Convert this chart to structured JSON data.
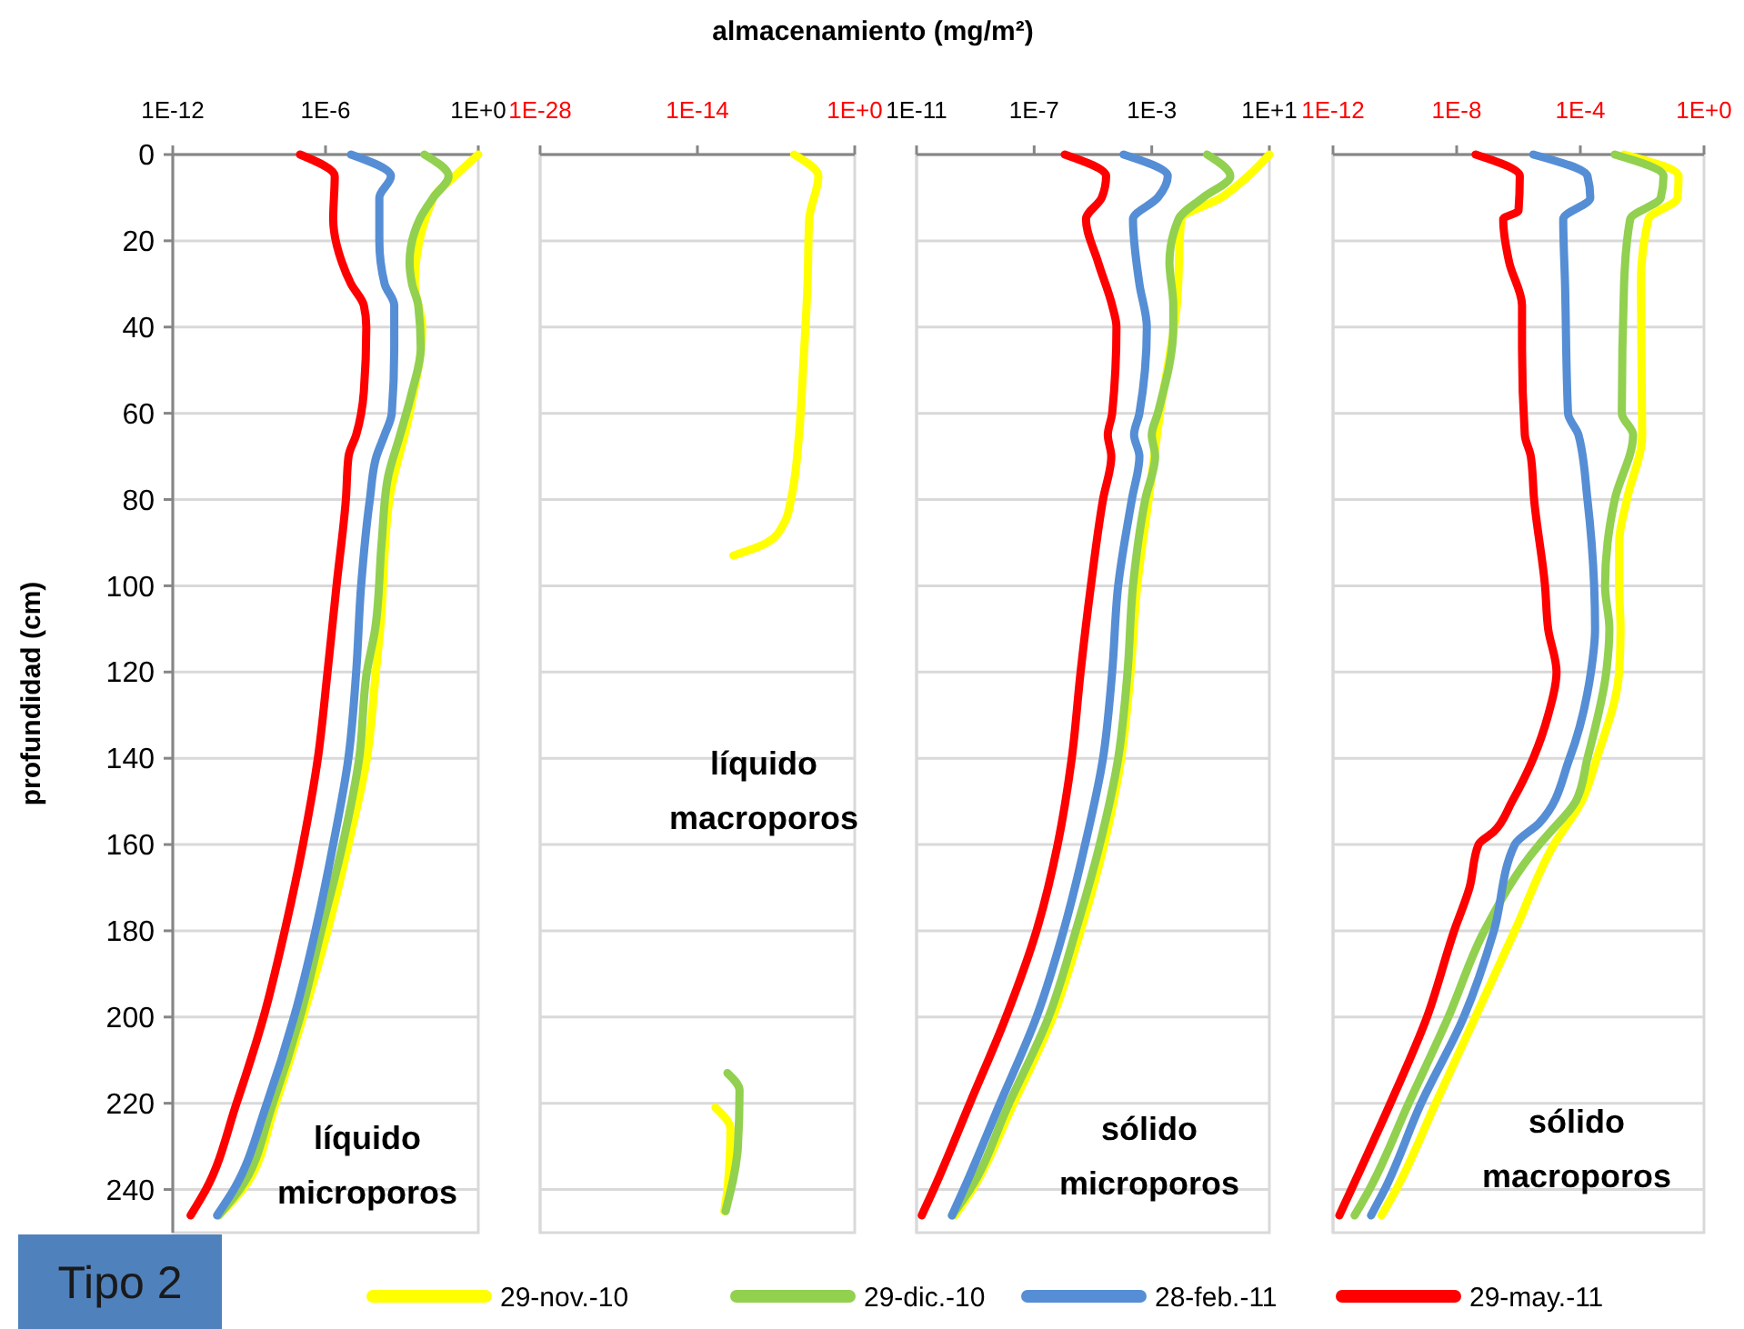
{
  "chart_data": [
    {
      "type": "line",
      "orientation": "horizontal",
      "ylabel": "profundidad (cm)",
      "log": "x",
      "grid": "y",
      "legend": "bottom",
      "xlim": [
        1e-12,
        1
      ],
      "xticks": [
        {
          "value": 1e-12,
          "label": "1E-12"
        },
        {
          "value": 1e-06,
          "label": "1E-6"
        },
        {
          "value": 1,
          "label": "1E+0"
        }
      ],
      "ylim": [
        250,
        0
      ],
      "yticks": [
        0,
        20,
        40,
        60,
        80,
        100,
        120,
        140,
        160,
        180,
        200,
        220,
        240
      ],
      "annotations": [
        "líquido microporos",
        "Tipo 2"
      ],
      "series": [
        {
          "name": "29-nov.-10",
          "color": "#ffff00",
          "x": [
            0,
            5,
            10,
            30,
            40,
            60,
            80,
            110,
            120,
            140,
            160,
            180,
            200,
            220,
            240,
            246
          ],
          "values": [
            1,
            0.12,
            0.017,
            0.0032,
            0.0063,
            0.002,
            0.00032,
            0.00014,
            9.5e-05,
            4.2e-05,
            7.9e-06,
            1.2e-06,
            1.3e-07,
            1.1e-08,
            5.5e-10,
            6.3e-11
          ]
        },
        {
          "name": "29-dic.-10",
          "color": "#92d050",
          "x": [
            0,
            5,
            10,
            15,
            25,
            30,
            35,
            45,
            55,
            65,
            75,
            90,
            110,
            120,
            140,
            160,
            180,
            200,
            220,
            240,
            246
          ],
          "values": [
            0.0076,
            0.068,
            0.017,
            0.005,
            0.002,
            0.0025,
            0.0044,
            0.0055,
            0.0025,
            0.00085,
            0.00028,
            0.00016,
            8.9e-05,
            4.2e-05,
            2.1e-05,
            4.7e-06,
            6.8e-07,
            1e-07,
            8.5e-09,
            4.2e-10,
            6.3e-11
          ]
        },
        {
          "name": "28-feb.-11",
          "color": "#558ed5",
          "x": [
            0,
            5,
            10,
            20,
            30,
            35,
            45,
            60,
            65,
            70,
            80,
            100,
            120,
            140,
            160,
            180,
            200,
            220,
            240,
            246
          ],
          "values": [
            1e-05,
            0.00037,
            0.00013,
            0.00013,
            0.00021,
            0.0005,
            0.0005,
            0.0004,
            0.00021,
            0.0001,
            5.5e-05,
            2.5e-05,
            1.6e-05,
            7.9e-06,
            2e-06,
            4e-07,
            5.8e-08,
            5e-09,
            2.5e-10,
            5.5e-11
          ]
        },
        {
          "name": "29-may.-11",
          "color": "#ff0000",
          "x": [
            0,
            5,
            15,
            25,
            30,
            35,
            40,
            55,
            65,
            70,
            80,
            100,
            120,
            140,
            160,
            180,
            200,
            220,
            240,
            246
          ],
          "values": [
            1e-07,
            2.3e-06,
            2e-06,
            4.4e-06,
            1e-05,
            3.2e-05,
            4e-05,
            3.2e-05,
            1.6e-05,
            8e-06,
            6.3e-06,
            2.7e-06,
            1.2e-06,
            5e-07,
            1.3e-07,
            2.5e-08,
            3.7e-09,
            3.2e-10,
            2e-11,
            5e-12
          ]
        }
      ]
    },
    {
      "type": "line",
      "orientation": "horizontal",
      "title": "almacenamiento (mg/m²)",
      "log": "x",
      "grid": "y",
      "tick_labels": "x",
      "xlim": [
        1e-28,
        1
      ],
      "xticks": [
        {
          "value": 1e-28,
          "label": "1E-28"
        },
        {
          "value": 1e-14,
          "label": "1E-14"
        },
        {
          "value": 1,
          "label": "1E+0"
        }
      ],
      "ylim": [
        250,
        0
      ],
      "yticks": [
        0,
        20,
        40,
        60,
        80,
        100,
        120,
        140,
        160,
        180,
        200,
        220,
        240
      ],
      "annotations": [
        "líquido macroporos"
      ],
      "series": [
        {
          "color": "#ffff00",
          "x": [
            0,
            5,
            15,
            30,
            50,
            65,
            80,
            85,
            90,
            93,
            150,
            221,
            226,
            240,
            245
          ],
          "values": [
            4e-06,
            0.00058,
            8.9e-05,
            6.3e-05,
            2.5e-05,
            1.1e-05,
            2.1e-06,
            6.3e-07,
            1.6e-08,
            1.6e-11,
            null,
            4e-13,
            8.7e-12,
            4.7e-12,
            2.5e-12
          ]
        },
        {
          "color": "#92d050",
          "x": [
            213,
            217,
            230,
            245
          ],
          "values": [
            4.7e-12,
            5.6e-11,
            4e-11,
            3.2e-12
          ]
        }
      ]
    },
    {
      "type": "line",
      "orientation": "horizontal",
      "log": "x",
      "grid": "y",
      "tick_labels": "x",
      "xlim": [
        1e-11,
        10
      ],
      "xticks": [
        {
          "value": 1e-11,
          "label": "1E-11"
        },
        {
          "value": 1e-07,
          "label": "1E-7"
        },
        {
          "value": 0.001,
          "label": "1E-3"
        },
        {
          "value": 10,
          "label": "1E+1"
        }
      ],
      "ylim": [
        250,
        0
      ],
      "yticks": [
        0,
        20,
        40,
        60,
        80,
        100,
        120,
        140,
        160,
        180,
        200,
        220,
        240
      ],
      "annotations": [
        "sólido microporos"
      ],
      "series": [
        {
          "color": "#ffff00",
          "x": [
            0,
            5,
            10,
            15,
            35,
            60,
            80,
            100,
            120,
            140,
            160,
            180,
            200,
            220,
            240,
            246
          ],
          "values": [
            10,
            1.9,
            0.23,
            0.01,
            0.0071,
            0.0019,
            0.00078,
            0.00032,
            0.00019,
            9.1e-05,
            2.4e-05,
            3.8e-06,
            4.3e-07,
            2e-08,
            7.9e-10,
            2e-10
          ]
        },
        {
          "color": "#92d050",
          "x": [
            0,
            5,
            10,
            15,
            25,
            35,
            40,
            60,
            65,
            70,
            80,
            100,
            120,
            140,
            160,
            180,
            200,
            220,
            240,
            246
          ],
          "values": [
            0.076,
            0.47,
            0.055,
            0.0081,
            0.004,
            0.0054,
            0.0054,
            0.0016,
            0.001,
            0.0013,
            0.0006,
            0.00023,
            0.00015,
            7.2e-05,
            1.7e-05,
            2.6e-06,
            3.1e-07,
            1.4e-08,
            6.5e-10,
            1.6e-10
          ]
        },
        {
          "color": "#558ed5",
          "x": [
            0,
            5,
            10,
            15,
            30,
            40,
            60,
            65,
            70,
            80,
            100,
            120,
            140,
            160,
            180,
            200,
            220,
            240,
            246
          ],
          "values": [
            0.00011,
            0.0035,
            0.0016,
            0.00023,
            0.00038,
            0.00068,
            0.00038,
            0.00025,
            0.00038,
            0.00021,
            7.2e-05,
            4.5e-05,
            2.2e-05,
            5.4e-06,
            1e-06,
            1.2e-07,
            6.9e-09,
            4e-10,
            1.6e-10
          ]
        },
        {
          "color": "#ff0000",
          "x": [
            0,
            5,
            10,
            15,
            25,
            35,
            40,
            60,
            65,
            70,
            80,
            100,
            120,
            140,
            160,
            180,
            200,
            220,
            240,
            246
          ],
          "values": [
            1.1e-06,
            2.8e-05,
            2e-05,
            5.8e-06,
            1.5e-05,
            4.5e-05,
            6.3e-05,
            4.5e-05,
            3.2e-05,
            4.2e-05,
            2.2e-05,
            8.5e-06,
            3.8e-06,
            1.9e-06,
            6.3e-07,
            1.2e-07,
            1.1e-08,
            6.5e-10,
            3.8e-11,
            1.5e-11
          ]
        }
      ]
    },
    {
      "type": "line",
      "orientation": "horizontal",
      "log": "x",
      "grid": "y",
      "tick_labels": "x",
      "xlim": [
        1e-12,
        1
      ],
      "xticks": [
        {
          "value": 1e-12,
          "label": "1E-12"
        },
        {
          "value": 1e-08,
          "label": "1E-8"
        },
        {
          "value": 0.0001,
          "label": "1E-4"
        },
        {
          "value": 1,
          "label": "1E+0"
        }
      ],
      "ylim": [
        250,
        0
      ],
      "yticks": [
        0,
        20,
        40,
        60,
        80,
        100,
        120,
        140,
        160,
        180,
        200,
        220,
        240
      ],
      "annotations": [
        "sólido macroporos"
      ],
      "series": [
        {
          "color": "#ffff00",
          "x": [
            0,
            5,
            10,
            15,
            30,
            65,
            80,
            90,
            100,
            110,
            120,
            140,
            150,
            160,
            180,
            200,
            220,
            240,
            246
          ],
          "values": [
            0.0026,
            0.15,
            0.14,
            0.016,
            0.0091,
            0.01,
            0.0032,
            0.0018,
            0.0018,
            0.002,
            0.0018,
            0.00034,
            0.00011,
            1.4e-05,
            7.6e-07,
            4e-08,
            2.1e-09,
            1.1e-10,
            3.7e-11
          ]
        },
        {
          "color": "#92d050",
          "x": [
            0,
            5,
            10,
            15,
            30,
            60,
            65,
            80,
            90,
            100,
            110,
            120,
            140,
            150,
            157,
            160,
            180,
            200,
            220,
            240,
            246
          ],
          "values": [
            0.0013,
            0.049,
            0.04,
            0.0041,
            0.0026,
            0.0022,
            0.0051,
            0.0013,
            0.00076,
            0.00063,
            0.00087,
            0.00069,
            0.00017,
            7.1e-05,
            1.1e-05,
            4.7e-06,
            7.9e-08,
            5.4e-09,
            2.8e-10,
            1.5e-11,
            5e-12
          ]
        },
        {
          "color": "#558ed5",
          "x": [
            0,
            5,
            10,
            15,
            30,
            60,
            65,
            80,
            100,
            110,
            120,
            140,
            155,
            160,
            180,
            200,
            220,
            240,
            246
          ],
          "values": [
            3e-06,
            0.00017,
            0.00021,
            2.8e-05,
            3.2e-05,
            4e-05,
            8.7e-05,
            0.00017,
            0.00028,
            0.0003,
            0.00022,
            4.5e-05,
            4.7e-06,
            7.6e-07,
            1.6e-07,
            1.7e-08,
            7.1e-10,
            4.7e-11,
            1.7e-11
          ]
        },
        {
          "color": "#ff0000",
          "x": [
            0,
            5,
            13,
            15,
            25,
            35,
            45,
            65,
            70,
            80,
            100,
            110,
            120,
            130,
            140,
            150,
            157,
            160,
            170,
            180,
            200,
            220,
            240,
            246
          ],
          "values": [
            4.1e-08,
            1.1e-06,
            1e-06,
            3.2e-07,
            5e-07,
            1.3e-06,
            1.3e-06,
            1.6e-06,
            2.5e-06,
            3.2e-06,
            7.2e-06,
            9.1e-06,
            1.7e-05,
            9.1e-06,
            3e-06,
            6.2e-07,
            1.6e-07,
            5.1e-08,
            2.6e-08,
            8.3e-09,
            1.1e-09,
            7.2e-11,
            3.9e-12,
            1.6e-12
          ]
        }
      ]
    }
  ]
}
